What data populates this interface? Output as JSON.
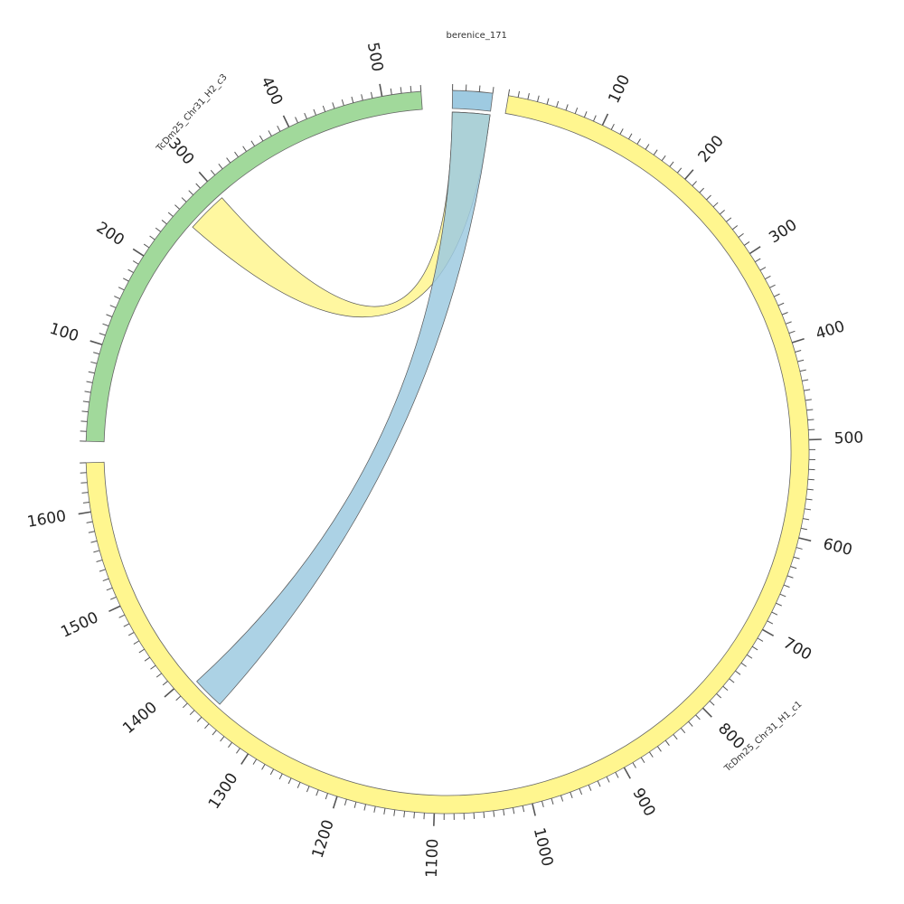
{
  "chart_data": {
    "type": "chord",
    "segments": [
      {
        "id": "TcDm25_Chr31_H1_c1",
        "name": "TcDm25_Chr31_H1_c1",
        "length": 1650,
        "color": "#fff68f",
        "major_ticks": [
          100,
          200,
          300,
          400,
          500,
          600,
          700,
          800,
          900,
          1000,
          1100,
          1200,
          1300,
          1400,
          1500,
          1600
        ]
      },
      {
        "id": "TcDm25_Chr31_H2_c3",
        "name": "TcDm25_Chr31_H2_c3",
        "length": 540,
        "color": "#a1d99b",
        "major_ticks": [
          100,
          200,
          300,
          400,
          500
        ]
      },
      {
        "id": "berenice_171",
        "name": "berenice_171",
        "length": 30,
        "color": "#9ecae1",
        "major_ticks": []
      }
    ],
    "links": [
      {
        "from": {
          "segment": "berenice_171",
          "start": 0,
          "end": 30
        },
        "to": {
          "segment": "TcDm25_Chr31_H2_c3",
          "start": 255,
          "end": 300
        },
        "color": "#fff68f"
      },
      {
        "from": {
          "segment": "berenice_171",
          "start": 0,
          "end": 30
        },
        "to": {
          "segment": "TcDm25_Chr31_H1_c1",
          "start": 1355,
          "end": 1390
        },
        "color": "#9ecae1"
      }
    ]
  }
}
